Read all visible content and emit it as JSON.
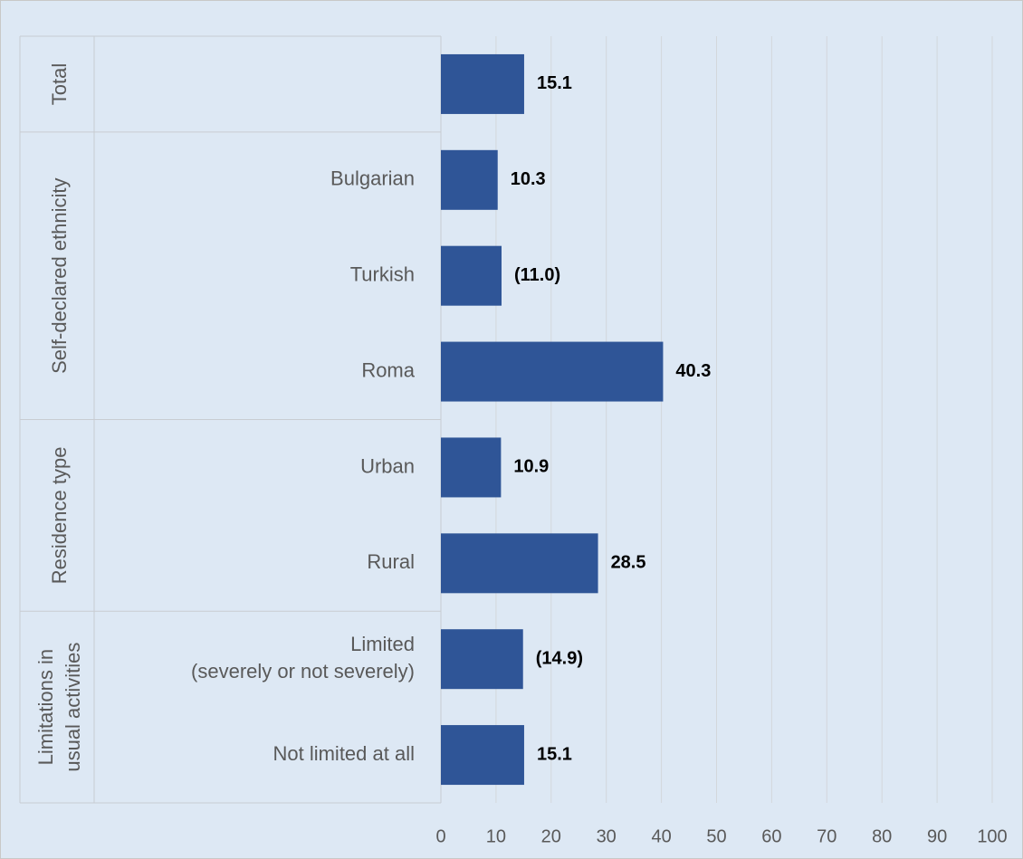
{
  "chart_data": {
    "type": "bar",
    "orientation": "horizontal",
    "color": "#2f5597",
    "groups": [
      {
        "label": "Total",
        "categories": [
          null
        ],
        "values": [
          15.1
        ],
        "value_labels": [
          "15.1"
        ]
      },
      {
        "label": "Self-declared ethnicity",
        "categories": [
          "Bulgarian",
          "Turkish",
          "Roma"
        ],
        "values": [
          10.3,
          11.0,
          40.3
        ],
        "value_labels": [
          "10.3",
          "(11.0)",
          "40.3"
        ]
      },
      {
        "label": "Residence type",
        "categories": [
          "Urban",
          "Rural"
        ],
        "values": [
          10.9,
          28.5
        ],
        "value_labels": [
          "10.9",
          "28.5"
        ]
      },
      {
        "label": "Limitations in\nusual activities",
        "categories": [
          "Limited\n(severely or not severely)",
          "Not limited at all"
        ],
        "values": [
          14.9,
          15.1
        ],
        "value_labels": [
          "(14.9)",
          "15.1"
        ]
      }
    ],
    "xlim": [
      0,
      100
    ],
    "xticks": [
      0,
      10,
      20,
      30,
      40,
      50,
      60,
      70,
      80,
      90,
      100
    ],
    "grid": true
  }
}
